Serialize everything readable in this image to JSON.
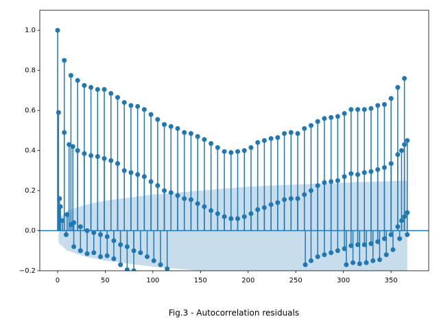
{
  "chart_data": {
    "type": "stem",
    "title": "Fig.3 - Autocorrelation residuals",
    "color": "#1f77b4",
    "xlim": [
      -18.7,
      389.5
    ],
    "ylim": [
      -0.2,
      1.1
    ],
    "xticks": [
      0,
      50,
      100,
      150,
      200,
      250,
      300,
      350
    ],
    "yticks": [
      {
        "value": -0.2,
        "label": "−0.2"
      },
      {
        "value": 0,
        "label": "0.0"
      },
      {
        "value": 0.2,
        "label": "0.2"
      },
      {
        "value": 0.4,
        "label": "0.4"
      },
      {
        "value": 0.6,
        "label": "0.6"
      },
      {
        "value": 0.8,
        "label": "0.8"
      },
      {
        "value": 1.0,
        "label": "1.0"
      }
    ],
    "band": {
      "x": [
        1,
        10,
        30,
        50,
        100,
        150,
        200,
        250,
        300,
        367
      ],
      "upper": [
        0.06,
        0.1,
        0.13,
        0.15,
        0.18,
        0.2,
        0.22,
        0.23,
        0.24,
        0.25
      ],
      "lower": [
        -0.06,
        -0.1,
        -0.13,
        -0.15,
        -0.18,
        -0.2,
        -0.22,
        -0.23,
        -0.24,
        -0.25
      ]
    },
    "series": [
      {
        "x": [
          0,
          7,
          14,
          21,
          28,
          35,
          42,
          49,
          56,
          63,
          70,
          77,
          84,
          91,
          98,
          105,
          112,
          119,
          126,
          133,
          140,
          147,
          154,
          161,
          168,
          175,
          182,
          189,
          196,
          203,
          210,
          217,
          224,
          231,
          238,
          245,
          252,
          259,
          266,
          273,
          280,
          287,
          294,
          301,
          308,
          315,
          322,
          329,
          336,
          343,
          350,
          357,
          364
        ],
        "values": [
          1.0,
          0.85,
          0.775,
          0.75,
          0.725,
          0.715,
          0.705,
          0.705,
          0.685,
          0.665,
          0.64,
          0.625,
          0.62,
          0.605,
          0.58,
          0.555,
          0.53,
          0.52,
          0.51,
          0.49,
          0.485,
          0.47,
          0.455,
          0.435,
          0.415,
          0.395,
          0.39,
          0.395,
          0.4,
          0.415,
          0.44,
          0.45,
          0.46,
          0.465,
          0.485,
          0.49,
          0.485,
          0.51,
          0.525,
          0.545,
          0.56,
          0.565,
          0.57,
          0.585,
          0.605,
          0.605,
          0.605,
          0.61,
          0.625,
          0.63,
          0.66,
          0.715,
          0.76
        ]
      },
      {
        "x": [
          1,
          7,
          12,
          16,
          21,
          28,
          35,
          42,
          49,
          56,
          63,
          70,
          77,
          84,
          91,
          98,
          105,
          112,
          119,
          126,
          133,
          140,
          147,
          154,
          161,
          168,
          175,
          182,
          189,
          196,
          203,
          210,
          217,
          224,
          231,
          238,
          245,
          252,
          259,
          266,
          273,
          280,
          287,
          294,
          301,
          308,
          315,
          322,
          329,
          336,
          343,
          350,
          357,
          361,
          364,
          367
        ],
        "values": [
          0.59,
          0.49,
          0.43,
          0.42,
          0.4,
          0.385,
          0.375,
          0.37,
          0.36,
          0.35,
          0.335,
          0.3,
          0.29,
          0.28,
          0.27,
          0.245,
          0.225,
          0.2,
          0.19,
          0.175,
          0.16,
          0.155,
          0.135,
          0.12,
          0.1,
          0.085,
          0.07,
          0.06,
          0.06,
          0.07,
          0.085,
          0.105,
          0.115,
          0.13,
          0.14,
          0.155,
          0.16,
          0.16,
          0.18,
          0.2,
          0.225,
          0.24,
          0.245,
          0.25,
          0.27,
          0.285,
          0.28,
          0.29,
          0.295,
          0.305,
          0.315,
          0.335,
          0.38,
          0.4,
          0.43,
          0.45
        ]
      },
      {
        "x": [
          3,
          10,
          17,
          24,
          31,
          38,
          45,
          52,
          59,
          66,
          73,
          80,
          87,
          94,
          101,
          108,
          115,
          260,
          266,
          273,
          280,
          287,
          294,
          301,
          308,
          315,
          322,
          329,
          336,
          343,
          350,
          357,
          361,
          364,
          367
        ],
        "values": [
          0.12,
          0.08,
          0.04,
          0.02,
          0.0,
          -0.01,
          -0.02,
          -0.03,
          -0.05,
          -0.07,
          -0.08,
          -0.1,
          -0.11,
          -0.13,
          -0.15,
          -0.17,
          -0.19,
          -0.17,
          -0.15,
          -0.13,
          -0.12,
          -0.11,
          -0.1,
          -0.09,
          -0.075,
          -0.07,
          -0.07,
          -0.065,
          -0.055,
          -0.04,
          -0.02,
          0.02,
          0.05,
          0.07,
          0.09
        ]
      },
      {
        "x": [
          2,
          5,
          9,
          14,
          17,
          24,
          31,
          38,
          45,
          52,
          59,
          66,
          73,
          80,
          303,
          310,
          317,
          324,
          331,
          338,
          345,
          352,
          359,
          367
        ],
        "values": [
          0.16,
          0.05,
          -0.02,
          0.03,
          -0.08,
          -0.1,
          -0.115,
          -0.11,
          -0.13,
          -0.125,
          -0.14,
          -0.17,
          -0.195,
          -0.2,
          -0.17,
          -0.16,
          -0.165,
          -0.16,
          -0.15,
          -0.145,
          -0.12,
          -0.095,
          -0.04,
          -0.02
        ]
      }
    ]
  }
}
